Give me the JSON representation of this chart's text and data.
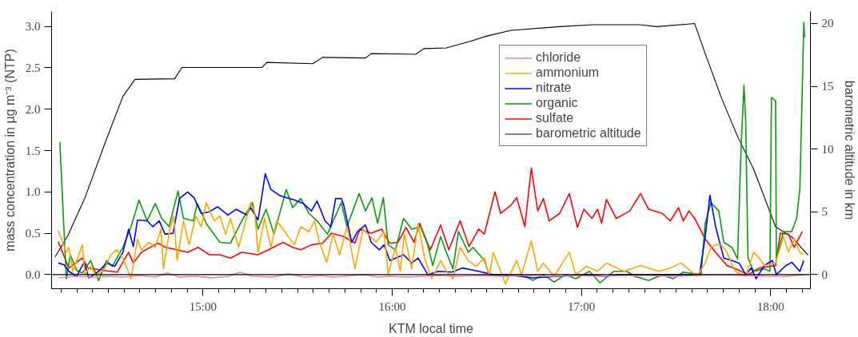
{
  "chart_data": {
    "type": "line",
    "xlabel": "KTM local time",
    "ylabel": "mass concentration in µg m⁻³ (NTP)",
    "y2label": "barometric altitude in km",
    "xlim": [
      14.2,
      18.21
    ],
    "ylim": [
      -0.17,
      3.18
    ],
    "y2lim": [
      -1.13,
      20.95
    ],
    "xticks": [
      {
        "value": 14.25,
        "label": null
      },
      {
        "value": 14.3333,
        "label": null
      },
      {
        "value": 14.4167,
        "label": null
      },
      {
        "value": 14.5,
        "label": null
      },
      {
        "value": 14.5833,
        "label": null
      },
      {
        "value": 14.6667,
        "label": null
      },
      {
        "value": 14.75,
        "label": null
      },
      {
        "value": 14.8333,
        "label": null
      },
      {
        "value": 14.9167,
        "label": null
      },
      {
        "value": 15,
        "label": "15:00"
      },
      {
        "value": 15.0833,
        "label": null
      },
      {
        "value": 15.1667,
        "label": null
      },
      {
        "value": 15.25,
        "label": null
      },
      {
        "value": 15.3333,
        "label": null
      },
      {
        "value": 15.4167,
        "label": null
      },
      {
        "value": 15.5,
        "label": null
      },
      {
        "value": 15.5833,
        "label": null
      },
      {
        "value": 15.6667,
        "label": null
      },
      {
        "value": 15.75,
        "label": null
      },
      {
        "value": 15.8333,
        "label": null
      },
      {
        "value": 15.9167,
        "label": null
      },
      {
        "value": 16,
        "label": "16:00"
      },
      {
        "value": 16.0833,
        "label": null
      },
      {
        "value": 16.1667,
        "label": null
      },
      {
        "value": 16.25,
        "label": null
      },
      {
        "value": 16.3333,
        "label": null
      },
      {
        "value": 16.4167,
        "label": null
      },
      {
        "value": 16.5,
        "label": null
      },
      {
        "value": 16.5833,
        "label": null
      },
      {
        "value": 16.6667,
        "label": null
      },
      {
        "value": 16.75,
        "label": null
      },
      {
        "value": 16.8333,
        "label": null
      },
      {
        "value": 16.9167,
        "label": null
      },
      {
        "value": 17,
        "label": "17:00"
      },
      {
        "value": 17.0833,
        "label": null
      },
      {
        "value": 17.1667,
        "label": null
      },
      {
        "value": 17.25,
        "label": null
      },
      {
        "value": 17.3333,
        "label": null
      },
      {
        "value": 17.4167,
        "label": null
      },
      {
        "value": 17.5,
        "label": null
      },
      {
        "value": 17.5833,
        "label": null
      },
      {
        "value": 17.6667,
        "label": null
      },
      {
        "value": 17.75,
        "label": null
      },
      {
        "value": 17.8333,
        "label": null
      },
      {
        "value": 17.9167,
        "label": null
      },
      {
        "value": 18,
        "label": "18:00"
      },
      {
        "value": 18.0833,
        "label": null
      },
      {
        "value": 18.1667,
        "label": null
      }
    ],
    "yticks": [
      {
        "value": 0,
        "label": "0.0"
      },
      {
        "value": 0.5,
        "label": "0.5"
      },
      {
        "value": 1,
        "label": "1.0"
      },
      {
        "value": 1.5,
        "label": "1.5"
      },
      {
        "value": 2,
        "label": "2.0"
      },
      {
        "value": 2.5,
        "label": "2.5"
      },
      {
        "value": 3,
        "label": "3.0"
      }
    ],
    "y2ticks": [
      0,
      5,
      10,
      15,
      20
    ],
    "grid": false,
    "legend": "top right",
    "line_style": "solid",
    "ref_lines": [
      {
        "axis": "y",
        "value": 0,
        "color": "#000000"
      }
    ],
    "series": [
      {
        "name": "chloride",
        "color": "#f080a8",
        "x": [
          14.235,
          14.321,
          14.406,
          14.491,
          14.577,
          14.662,
          14.748,
          14.812,
          14.876,
          14.962,
          15.047,
          15.132,
          15.197,
          15.261,
          15.368,
          15.453,
          15.538,
          15.624,
          15.688,
          15.795,
          15.859,
          15.923,
          15.987,
          16.073,
          16.158,
          16.244,
          16.329,
          16.457,
          16.585,
          16.714,
          16.842,
          16.97,
          17.098,
          17.226,
          17.355,
          17.483,
          17.611,
          17.739,
          17.868,
          17.996,
          18.081,
          18.175
        ],
        "values": [
          -0.04,
          -0.02,
          -0.03,
          -0.02,
          -0.03,
          -0.01,
          -0.03,
          0.02,
          -0.03,
          -0.02,
          -0.04,
          -0.02,
          0.03,
          -0.02,
          -0.03,
          0.01,
          -0.03,
          -0.01,
          -0.03,
          -0.01,
          0.0,
          -0.03,
          -0.02,
          -0.03,
          -0.02,
          -0.01,
          -0.02,
          -0.01,
          -0.02,
          -0.01,
          -0.02,
          -0.01,
          -0.02,
          -0.01,
          -0.01,
          -0.02,
          -0.01,
          0.0,
          -0.01,
          -0.02,
          -0.02,
          0.0
        ]
      },
      {
        "name": "ammonium",
        "color": "#ffa500",
        "x": [
          14.235,
          14.248,
          14.278,
          14.291,
          14.312,
          14.363,
          14.376,
          14.406,
          14.436,
          14.479,
          14.513,
          14.543,
          14.577,
          14.62,
          14.654,
          14.675,
          14.714,
          14.748,
          14.778,
          14.791,
          14.825,
          14.846,
          14.863,
          14.897,
          14.927,
          14.962,
          14.991,
          15.017,
          15.06,
          15.09,
          15.12,
          15.145,
          15.188,
          15.218,
          15.252,
          15.274,
          15.291,
          15.325,
          15.359,
          15.389,
          15.432,
          15.483,
          15.517,
          15.56,
          15.59,
          15.615,
          15.654,
          15.688,
          15.722,
          15.761,
          15.803,
          15.846,
          15.915,
          15.957,
          15.979,
          16.017,
          16.043,
          16.064,
          16.103,
          16.137,
          16.171,
          16.209,
          16.256,
          16.286,
          16.321,
          16.359,
          16.402,
          16.444,
          16.487,
          16.513,
          16.534,
          16.573,
          16.598,
          16.658,
          16.684,
          16.735,
          16.769,
          16.799,
          16.855,
          16.936,
          16.97,
          17.026,
          17.085,
          17.132,
          17.226,
          17.312,
          17.41,
          17.47,
          17.526,
          17.611,
          17.654,
          17.684,
          17.709,
          17.739,
          17.769,
          17.812,
          17.868,
          17.91,
          17.94,
          17.966,
          18.026,
          18.068,
          18.094,
          18.124,
          18.154,
          18.175
        ],
        "values": [
          0.53,
          0.46,
          0.27,
          0.33,
          0.04,
          0.36,
          0.0,
          0.1,
          -0.02,
          0.07,
          0.24,
          0.3,
          0.2,
          -0.05,
          0.43,
          0.3,
          0.39,
          0.33,
          0.55,
          0.07,
          0.55,
          0.71,
          0.17,
          0.65,
          0.36,
          0.71,
          0.58,
          0.87,
          0.65,
          0.71,
          0.49,
          0.68,
          0.33,
          0.58,
          0.87,
          0.74,
          0.27,
          0.68,
          0.33,
          0.65,
          0.52,
          0.36,
          0.58,
          0.52,
          0.65,
          0.39,
          0.15,
          0.49,
          0.24,
          0.58,
          0.07,
          0.55,
          0.39,
          0.52,
          0.0,
          0.33,
          0.04,
          0.49,
          0.07,
          0.62,
          0.2,
          -0.05,
          0.17,
          0.04,
          -0.05,
          0.33,
          0.17,
          0.1,
          0.2,
          -0.02,
          0.27,
          0.04,
          -0.11,
          0.17,
          0.0,
          0.41,
          0.04,
          0.14,
          -0.02,
          0.27,
          0.0,
          0.1,
          0.04,
          0.14,
          0.04,
          0.11,
          0.04,
          0.08,
          0.14,
          -0.02,
          0.14,
          0.33,
          0.36,
          0.36,
          0.27,
          0.04,
          -0.02,
          0.27,
          0.2,
          0.11,
          0.14,
          0.46,
          0.27,
          0.43,
          0.27,
          0.24
        ]
      },
      {
        "name": "nitrate",
        "color": "#0000ff",
        "x": [
          14.235,
          14.265,
          14.291,
          14.333,
          14.372,
          14.397,
          14.449,
          14.491,
          14.534,
          14.577,
          14.607,
          14.632,
          14.654,
          14.705,
          14.735,
          14.769,
          14.799,
          14.842,
          14.876,
          14.919,
          14.953,
          14.991,
          15.034,
          15.077,
          15.132,
          15.175,
          15.231,
          15.252,
          15.291,
          15.312,
          15.329,
          15.359,
          15.402,
          15.44,
          15.487,
          15.53,
          15.573,
          15.603,
          15.645,
          15.675,
          15.701,
          15.731,
          15.744,
          15.786,
          15.816,
          15.859,
          15.889,
          15.932,
          15.957,
          15.987,
          16.06,
          16.103,
          16.137,
          16.188,
          16.244,
          16.316,
          16.372,
          16.457,
          16.53,
          16.598,
          16.744,
          16.885,
          17.026,
          17.132,
          17.197,
          17.453,
          17.624,
          17.654,
          17.679,
          17.709,
          17.752,
          17.795,
          17.833,
          17.868,
          17.897,
          17.923,
          17.966,
          18.009,
          18.03,
          18.081,
          18.111,
          18.154,
          18.175
        ],
        "values": [
          0.14,
          0.12,
          0.04,
          -0.02,
          0.15,
          -0.04,
          0.04,
          0.14,
          0.1,
          0.27,
          0.55,
          0.34,
          0.66,
          0.65,
          0.58,
          0.65,
          0.49,
          0.5,
          0.92,
          1.0,
          0.93,
          0.74,
          0.76,
          0.82,
          0.72,
          0.79,
          0.72,
          0.81,
          0.66,
          0.96,
          1.22,
          1.03,
          0.96,
          0.93,
          0.9,
          0.86,
          0.77,
          0.89,
          0.65,
          0.58,
          0.92,
          0.92,
          0.84,
          0.39,
          0.52,
          0.6,
          0.39,
          0.3,
          0.36,
          0.17,
          0.24,
          0.14,
          0.2,
          0.0,
          0.04,
          0.03,
          0.08,
          0.04,
          0.0,
          0.0,
          -0.04,
          -0.02,
          0.0,
          -0.02,
          0.0,
          0.0,
          0.0,
          0.46,
          0.96,
          0.58,
          0.2,
          0.17,
          0.14,
          0.0,
          0.08,
          -0.05,
          0.11,
          0.17,
          0.0,
          0.11,
          0.15,
          0.04,
          0.17
        ]
      },
      {
        "name": "organic",
        "color": "#0a9a0a",
        "x": [
          14.244,
          14.248,
          14.278,
          14.299,
          14.333,
          14.363,
          14.406,
          14.449,
          14.491,
          14.521,
          14.577,
          14.62,
          14.662,
          14.705,
          14.748,
          14.782,
          14.821,
          14.868,
          14.897,
          14.949,
          14.97,
          15.017,
          15.09,
          15.145,
          15.205,
          15.261,
          15.291,
          15.333,
          15.376,
          15.44,
          15.474,
          15.517,
          15.56,
          15.603,
          15.658,
          15.731,
          15.761,
          15.825,
          15.859,
          15.893,
          15.923,
          15.953,
          15.979,
          16.017,
          16.06,
          16.103,
          16.15,
          16.188,
          16.214,
          16.256,
          16.286,
          16.321,
          16.35,
          16.402,
          16.427,
          16.487,
          16.513,
          16.598,
          16.684,
          16.744,
          16.799,
          16.855,
          16.915,
          16.97,
          17.043,
          17.098,
          17.171,
          17.239,
          17.282,
          17.355,
          17.427,
          17.483,
          17.538,
          17.632,
          17.654,
          17.684,
          17.726,
          17.752,
          17.795,
          17.825,
          17.838,
          17.846,
          17.859,
          17.868,
          17.88,
          17.91,
          17.966,
          17.996,
          18.004,
          18.026,
          18.03,
          18.068,
          18.111,
          18.137,
          18.154,
          18.167,
          18.175,
          18.179
        ],
        "values": [
          1.6,
          1.39,
          -0.05,
          0.24,
          0.05,
          0.02,
          0.17,
          -0.07,
          0.17,
          0.1,
          0.33,
          0.58,
          0.9,
          0.65,
          0.86,
          0.68,
          0.58,
          1.01,
          0.68,
          0.65,
          0.86,
          0.62,
          0.39,
          0.38,
          0.65,
          0.87,
          0.55,
          0.79,
          0.49,
          1.03,
          0.81,
          0.92,
          0.74,
          0.65,
          0.49,
          0.87,
          0.58,
          0.98,
          0.77,
          0.93,
          0.62,
          0.93,
          0.36,
          0.3,
          0.68,
          0.55,
          0.58,
          0.36,
          0.11,
          0.46,
          0.27,
          0.07,
          0.52,
          0.27,
          0.33,
          0.17,
          0.0,
          -0.02,
          0.0,
          -0.07,
          0.0,
          -0.09,
          0.0,
          -0.05,
          0.04,
          -0.1,
          0.04,
          0.04,
          -0.02,
          -0.07,
          0.0,
          -0.05,
          0.03,
          0.0,
          0.62,
          0.87,
          0.77,
          0.39,
          0.33,
          0.19,
          1.15,
          1.66,
          2.29,
          1.85,
          0.2,
          0.04,
          0.07,
          0.04,
          2.14,
          2.1,
          0.2,
          0.52,
          0.52,
          0.68,
          1.03,
          2.24,
          3.05,
          2.87
        ]
      },
      {
        "name": "sulfate",
        "color": "#ff0000",
        "x": [
          14.235,
          14.291,
          14.363,
          14.393,
          14.479,
          14.547,
          14.607,
          14.632,
          14.675,
          14.761,
          14.803,
          14.863,
          14.919,
          14.974,
          15.034,
          15.09,
          15.145,
          15.205,
          15.291,
          15.346,
          15.423,
          15.474,
          15.517,
          15.573,
          15.632,
          15.679,
          15.744,
          15.803,
          15.829,
          15.889,
          15.944,
          15.987,
          16.03,
          16.073,
          16.115,
          16.145,
          16.201,
          16.256,
          16.299,
          16.359,
          16.406,
          16.457,
          16.487,
          16.543,
          16.573,
          16.628,
          16.658,
          16.701,
          16.735,
          16.769,
          16.799,
          16.829,
          16.885,
          16.936,
          16.979,
          17.013,
          17.056,
          17.085,
          17.107,
          17.132,
          17.184,
          17.256,
          17.312,
          17.355,
          17.427,
          17.47,
          17.513,
          17.538,
          17.568,
          17.598,
          17.654,
          17.709,
          17.769,
          17.825,
          17.88,
          17.94,
          18.026,
          18.051,
          18.094,
          18.124,
          18.167
        ],
        "values": [
          0.4,
          0.08,
          0.2,
          0.08,
          0.05,
          0.03,
          0.27,
          0.14,
          0.27,
          0.38,
          0.33,
          0.3,
          0.27,
          0.33,
          0.24,
          0.24,
          0.2,
          0.27,
          0.24,
          0.3,
          0.39,
          0.33,
          0.3,
          0.36,
          0.38,
          0.5,
          0.46,
          0.38,
          0.55,
          0.5,
          0.55,
          0.38,
          0.39,
          0.57,
          0.39,
          0.62,
          0.3,
          0.6,
          0.3,
          0.65,
          0.34,
          0.55,
          0.49,
          1.0,
          0.74,
          0.84,
          0.93,
          0.58,
          1.29,
          0.77,
          0.92,
          0.65,
          0.74,
          0.98,
          0.57,
          0.79,
          0.68,
          0.79,
          0.62,
          0.91,
          0.68,
          0.77,
          0.98,
          0.79,
          0.74,
          0.65,
          0.81,
          0.65,
          0.77,
          0.68,
          0.43,
          0.27,
          0.11,
          0.06,
          0.0,
          0.08,
          0.11,
          0.5,
          0.49,
          0.33,
          0.52
        ]
      },
      {
        "name": "barometric altitude",
        "color": "#000000",
        "axis": "y2",
        "x": [
          14.218,
          14.286,
          14.376,
          14.483,
          14.577,
          14.641,
          14.85,
          14.889,
          15.312,
          15.338,
          15.581,
          15.632,
          15.859,
          15.889,
          16.124,
          16.167,
          16.286,
          16.415,
          16.5,
          16.628,
          16.885,
          17.056,
          17.312,
          17.397,
          17.598,
          17.654,
          17.739,
          17.825,
          17.91,
          18.026,
          18.111,
          18.197
        ],
        "values": [
          1.4,
          3.1,
          6.1,
          10.5,
          14.2,
          15.55,
          15.6,
          16.5,
          16.5,
          16.9,
          16.8,
          17.3,
          17.25,
          17.6,
          17.55,
          18.0,
          18.05,
          18.6,
          19.0,
          19.45,
          19.75,
          19.9,
          19.9,
          19.75,
          20.0,
          17.6,
          14.1,
          11.0,
          8.4,
          3.8,
          3.0,
          1.55
        ]
      }
    ]
  }
}
